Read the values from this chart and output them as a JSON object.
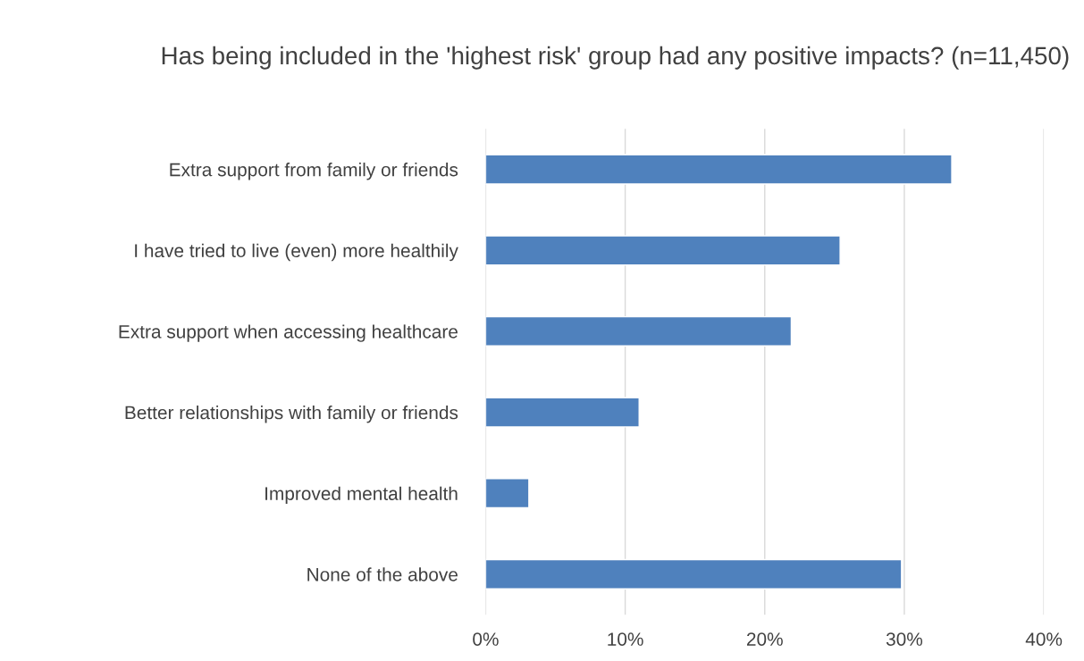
{
  "chart_data": {
    "type": "bar",
    "orientation": "horizontal",
    "title": "Has being included in the 'highest risk' group had any positive impacts? (n=11,450)",
    "categories": [
      "Extra support from family or friends",
      "I have tried to live (even) more healthily",
      "Extra support when accessing healthcare",
      "Better relationships with family or friends",
      "Improved mental health",
      "None of the above"
    ],
    "values": [
      33.4,
      25.4,
      21.9,
      11.0,
      3.1,
      29.8
    ],
    "color": "#4f81bd",
    "xlim": [
      0,
      40
    ],
    "xticks": [
      {
        "value": 0,
        "label": "0%"
      },
      {
        "value": 10,
        "label": "10%"
      },
      {
        "value": 20,
        "label": "20%"
      },
      {
        "value": 30,
        "label": "30%"
      },
      {
        "value": 40,
        "label": "40%"
      }
    ],
    "grid": "x",
    "legend": false
  }
}
